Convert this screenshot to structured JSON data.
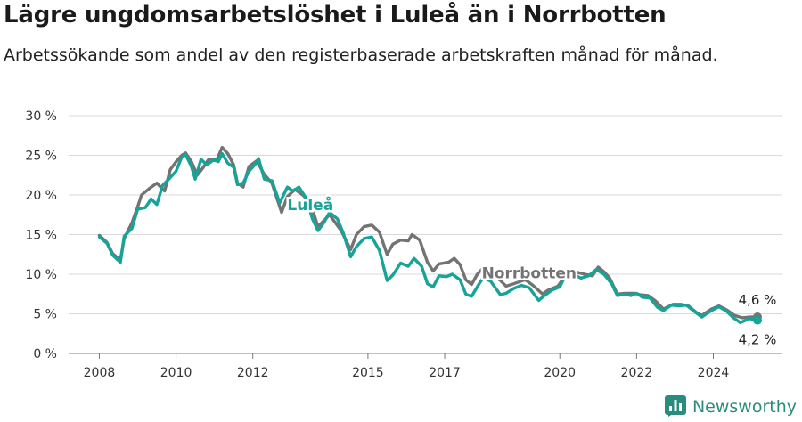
{
  "title": "Lägre ungdomsarbetslöshet i Luleå än i Norrbotten",
  "subtitle": "Arbetssökande som andel av den registerbaserade arbetskraften månad för månad.",
  "brand": "Newsworthy",
  "colors": {
    "lulea": "#17a398",
    "norrbotten": "#737373",
    "grid": "#d9d9d9",
    "brand": "#2a8c7e"
  },
  "chart_data": {
    "type": "line",
    "title": "Lägre ungdomsarbetslöshet i Luleå än i Norrbotten",
    "xlabel": "",
    "ylabel": "",
    "ylim": [
      0,
      30
    ],
    "y_ticks": [
      {
        "value": 0,
        "label": "0 %"
      },
      {
        "value": 5,
        "label": "5 %"
      },
      {
        "value": 10,
        "label": "10 %"
      },
      {
        "value": 15,
        "label": "15 %"
      },
      {
        "value": 20,
        "label": "20 %"
      },
      {
        "value": 25,
        "label": "25 %"
      },
      {
        "value": 30,
        "label": "30 %"
      }
    ],
    "x_ticks": [
      2008,
      2010,
      2012,
      2015,
      2017,
      2020,
      2022,
      2024
    ],
    "x_range": [
      2007.2,
      2025.8
    ],
    "series": [
      {
        "name": "Norrbotten",
        "color": "#737373",
        "end_label": "4,6 %",
        "points": [
          [
            2008.0,
            14.9
          ],
          [
            2008.2,
            14.0
          ],
          [
            2008.35,
            12.6
          ],
          [
            2008.55,
            11.8
          ],
          [
            2008.65,
            14.5
          ],
          [
            2008.85,
            16.5
          ],
          [
            2009.0,
            18.5
          ],
          [
            2009.1,
            20.0
          ],
          [
            2009.3,
            20.8
          ],
          [
            2009.5,
            21.5
          ],
          [
            2009.7,
            20.5
          ],
          [
            2009.85,
            23.2
          ],
          [
            2010.0,
            24.2
          ],
          [
            2010.15,
            25.0
          ],
          [
            2010.25,
            25.3
          ],
          [
            2010.4,
            24.2
          ],
          [
            2010.55,
            22.5
          ],
          [
            2010.7,
            23.4
          ],
          [
            2010.85,
            24.5
          ],
          [
            2011.05,
            24.3
          ],
          [
            2011.2,
            26.0
          ],
          [
            2011.35,
            25.2
          ],
          [
            2011.5,
            23.8
          ],
          [
            2011.6,
            21.5
          ],
          [
            2011.75,
            21.0
          ],
          [
            2011.9,
            23.6
          ],
          [
            2012.1,
            24.3
          ],
          [
            2012.3,
            22.6
          ],
          [
            2012.5,
            21.5
          ],
          [
            2012.75,
            17.8
          ],
          [
            2012.9,
            19.8
          ],
          [
            2013.1,
            20.7
          ],
          [
            2013.3,
            20.0
          ],
          [
            2013.5,
            19.0
          ],
          [
            2013.7,
            16.0
          ],
          [
            2014.0,
            17.5
          ],
          [
            2014.3,
            15.5
          ],
          [
            2014.55,
            13.1
          ],
          [
            2014.7,
            15.0
          ],
          [
            2014.9,
            16.0
          ],
          [
            2015.1,
            16.2
          ],
          [
            2015.3,
            15.3
          ],
          [
            2015.5,
            12.5
          ],
          [
            2015.65,
            13.8
          ],
          [
            2015.85,
            14.3
          ],
          [
            2016.05,
            14.2
          ],
          [
            2016.15,
            15.0
          ],
          [
            2016.35,
            14.3
          ],
          [
            2016.55,
            11.5
          ],
          [
            2016.7,
            10.4
          ],
          [
            2016.85,
            11.3
          ],
          [
            2017.1,
            11.5
          ],
          [
            2017.25,
            12.0
          ],
          [
            2017.4,
            11.2
          ],
          [
            2017.55,
            9.3
          ],
          [
            2017.7,
            8.7
          ],
          [
            2017.85,
            10.0
          ],
          [
            2018.0,
            10.8
          ],
          [
            2018.2,
            10.2
          ],
          [
            2018.45,
            9.2
          ],
          [
            2018.6,
            8.5
          ],
          [
            2018.8,
            8.8
          ],
          [
            2019.1,
            9.3
          ],
          [
            2019.3,
            8.6
          ],
          [
            2019.55,
            7.5
          ],
          [
            2019.7,
            8.0
          ],
          [
            2019.95,
            8.5
          ],
          [
            2020.2,
            10.2
          ],
          [
            2020.4,
            10.3
          ],
          [
            2020.65,
            10.0
          ],
          [
            2020.85,
            9.8
          ],
          [
            2021.0,
            10.9
          ],
          [
            2021.15,
            10.3
          ],
          [
            2021.3,
            9.5
          ],
          [
            2021.5,
            7.5
          ],
          [
            2021.7,
            7.6
          ],
          [
            2021.95,
            7.6
          ],
          [
            2022.1,
            7.4
          ],
          [
            2022.3,
            7.3
          ],
          [
            2022.5,
            6.6
          ],
          [
            2022.7,
            5.6
          ],
          [
            2022.95,
            6.2
          ],
          [
            2023.15,
            6.2
          ],
          [
            2023.35,
            6.0
          ],
          [
            2023.55,
            5.2
          ],
          [
            2023.7,
            4.8
          ],
          [
            2023.95,
            5.6
          ],
          [
            2024.15,
            6.0
          ],
          [
            2024.35,
            5.5
          ],
          [
            2024.55,
            4.8
          ],
          [
            2024.75,
            4.5
          ],
          [
            2024.95,
            4.6
          ],
          [
            2025.15,
            4.6
          ]
        ]
      },
      {
        "name": "Luleå",
        "color": "#17a398",
        "end_label": "4,2 %",
        "points": [
          [
            2008.0,
            14.7
          ],
          [
            2008.2,
            13.9
          ],
          [
            2008.35,
            12.4
          ],
          [
            2008.55,
            11.5
          ],
          [
            2008.65,
            14.8
          ],
          [
            2008.85,
            15.8
          ],
          [
            2009.0,
            18.2
          ],
          [
            2009.2,
            18.4
          ],
          [
            2009.35,
            19.5
          ],
          [
            2009.5,
            18.8
          ],
          [
            2009.65,
            21.2
          ],
          [
            2009.85,
            22.2
          ],
          [
            2010.0,
            23.0
          ],
          [
            2010.15,
            24.8
          ],
          [
            2010.25,
            25.1
          ],
          [
            2010.4,
            23.6
          ],
          [
            2010.5,
            22.0
          ],
          [
            2010.65,
            24.5
          ],
          [
            2010.8,
            23.8
          ],
          [
            2011.0,
            24.5
          ],
          [
            2011.1,
            24.2
          ],
          [
            2011.2,
            25.2
          ],
          [
            2011.35,
            24.0
          ],
          [
            2011.5,
            23.5
          ],
          [
            2011.6,
            21.3
          ],
          [
            2011.75,
            21.5
          ],
          [
            2011.9,
            23.0
          ],
          [
            2012.05,
            23.8
          ],
          [
            2012.15,
            24.6
          ],
          [
            2012.3,
            22.0
          ],
          [
            2012.5,
            21.8
          ],
          [
            2012.7,
            19.0
          ],
          [
            2012.9,
            21.0
          ],
          [
            2013.05,
            20.5
          ],
          [
            2013.2,
            21.0
          ],
          [
            2013.4,
            19.5
          ],
          [
            2013.55,
            17.0
          ],
          [
            2013.7,
            15.5
          ],
          [
            2013.85,
            16.5
          ],
          [
            2014.0,
            17.8
          ],
          [
            2014.2,
            17.0
          ],
          [
            2014.35,
            15.3
          ],
          [
            2014.55,
            12.2
          ],
          [
            2014.7,
            13.5
          ],
          [
            2014.9,
            14.5
          ],
          [
            2015.1,
            14.7
          ],
          [
            2015.3,
            13.0
          ],
          [
            2015.5,
            9.2
          ],
          [
            2015.65,
            9.9
          ],
          [
            2015.85,
            11.4
          ],
          [
            2016.05,
            11.0
          ],
          [
            2016.2,
            12.0
          ],
          [
            2016.4,
            11.0
          ],
          [
            2016.55,
            8.8
          ],
          [
            2016.7,
            8.4
          ],
          [
            2016.85,
            9.8
          ],
          [
            2017.05,
            9.7
          ],
          [
            2017.2,
            10.0
          ],
          [
            2017.4,
            9.3
          ],
          [
            2017.55,
            7.5
          ],
          [
            2017.7,
            7.2
          ],
          [
            2017.85,
            8.4
          ],
          [
            2018.0,
            9.6
          ],
          [
            2018.2,
            9.1
          ],
          [
            2018.45,
            7.4
          ],
          [
            2018.6,
            7.6
          ],
          [
            2018.8,
            8.2
          ],
          [
            2019.0,
            8.6
          ],
          [
            2019.2,
            8.3
          ],
          [
            2019.45,
            6.7
          ],
          [
            2019.6,
            7.3
          ],
          [
            2019.8,
            8.0
          ],
          [
            2020.0,
            8.4
          ],
          [
            2020.2,
            10.4
          ],
          [
            2020.35,
            10.0
          ],
          [
            2020.55,
            9.5
          ],
          [
            2020.75,
            9.8
          ],
          [
            2020.95,
            10.6
          ],
          [
            2021.15,
            10.0
          ],
          [
            2021.35,
            8.8
          ],
          [
            2021.5,
            7.3
          ],
          [
            2021.7,
            7.5
          ],
          [
            2021.85,
            7.3
          ],
          [
            2022.0,
            7.6
          ],
          [
            2022.15,
            7.1
          ],
          [
            2022.35,
            7.0
          ],
          [
            2022.55,
            5.8
          ],
          [
            2022.7,
            5.4
          ],
          [
            2022.9,
            6.1
          ],
          [
            2023.1,
            6.0
          ],
          [
            2023.3,
            6.1
          ],
          [
            2023.5,
            5.3
          ],
          [
            2023.7,
            4.6
          ],
          [
            2023.95,
            5.4
          ],
          [
            2024.15,
            5.9
          ],
          [
            2024.35,
            5.3
          ],
          [
            2024.5,
            4.6
          ],
          [
            2024.7,
            3.9
          ],
          [
            2024.95,
            4.4
          ],
          [
            2025.15,
            4.2
          ]
        ]
      }
    ],
    "inline_labels": [
      {
        "series": "Luleå",
        "text": "Luleå",
        "x": 2013.5,
        "y": 18.1
      },
      {
        "series": "Norrbotten",
        "text": "Norrbotten",
        "x": 2019.2,
        "y": 9.5
      }
    ]
  }
}
